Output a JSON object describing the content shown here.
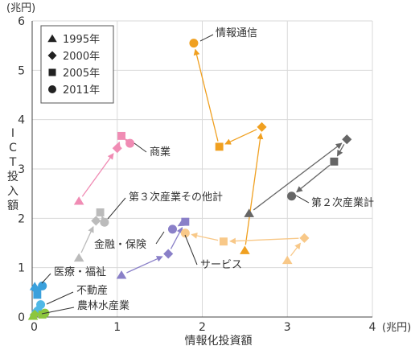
{
  "chart_data": {
    "type": "scatter",
    "xlabel": "情報化投資額",
    "x_unit": "(兆円)",
    "ylabel": "ICT投入額",
    "y_unit": "(兆円)",
    "xlim": [
      0,
      4
    ],
    "ylim": [
      0,
      6
    ],
    "x_ticks": [
      0,
      1,
      2,
      3,
      4
    ],
    "y_ticks": [
      0,
      1,
      2,
      3,
      4,
      5,
      6
    ],
    "grid": true,
    "legend_position": "top-left",
    "legend": [
      {
        "label": "1995年",
        "marker": "triangle"
      },
      {
        "label": "2000年",
        "marker": "diamond"
      },
      {
        "label": "2005年",
        "marker": "square"
      },
      {
        "label": "2011年",
        "marker": "circle"
      }
    ],
    "series": [
      {
        "name": "情報通信",
        "color": "#f0a020",
        "points": [
          {
            "x": 2.5,
            "y": 1.35
          },
          {
            "x": 2.7,
            "y": 3.85
          },
          {
            "x": 2.2,
            "y": 3.45
          },
          {
            "x": 1.9,
            "y": 5.55
          }
        ]
      },
      {
        "name": "商業",
        "color": "#f08cb4",
        "points": [
          {
            "x": 0.55,
            "y": 2.35
          },
          {
            "x": 1.0,
            "y": 3.42
          },
          {
            "x": 1.05,
            "y": 3.67
          },
          {
            "x": 1.15,
            "y": 3.52
          }
        ]
      },
      {
        "name": "第２次産業計",
        "color": "#666666",
        "points": [
          {
            "x": 2.55,
            "y": 2.1
          },
          {
            "x": 3.7,
            "y": 3.6
          },
          {
            "x": 3.55,
            "y": 3.15
          },
          {
            "x": 3.05,
            "y": 2.45
          }
        ]
      },
      {
        "name": "第３次産業その他計",
        "color": "#bbbbbb",
        "points": [
          {
            "x": 0.55,
            "y": 1.2
          },
          {
            "x": 0.75,
            "y": 1.95
          },
          {
            "x": 0.8,
            "y": 2.12
          },
          {
            "x": 0.85,
            "y": 1.92
          }
        ]
      },
      {
        "name": "金融・保険",
        "color": "#8a80c8",
        "points": [
          {
            "x": 1.05,
            "y": 0.85
          },
          {
            "x": 1.6,
            "y": 1.28
          },
          {
            "x": 1.8,
            "y": 1.93
          },
          {
            "x": 1.65,
            "y": 1.78
          }
        ]
      },
      {
        "name": "サービス",
        "color": "#f8c888",
        "points": [
          {
            "x": 3.0,
            "y": 1.15
          },
          {
            "x": 3.2,
            "y": 1.6
          },
          {
            "x": 2.25,
            "y": 1.53
          },
          {
            "x": 1.8,
            "y": 1.7
          }
        ]
      },
      {
        "name": "医療・福祉",
        "color": "#3aa0dc",
        "points": [
          {
            "x": 0.03,
            "y": 0.62
          },
          {
            "x": 0.05,
            "y": 0.55
          },
          {
            "x": 0.06,
            "y": 0.45
          },
          {
            "x": 0.12,
            "y": 0.63
          }
        ]
      },
      {
        "name": "不動産",
        "color": "#4fb8e6",
        "points": [
          {
            "x": 0.03,
            "y": 0.1
          },
          {
            "x": 0.05,
            "y": 0.12
          },
          {
            "x": 0.07,
            "y": 0.1
          },
          {
            "x": 0.1,
            "y": 0.25
          }
        ]
      },
      {
        "name": "農林水産業",
        "color": "#8cc63e",
        "points": [
          {
            "x": 0.01,
            "y": 0.02
          },
          {
            "x": 0.03,
            "y": 0.05
          },
          {
            "x": 0.12,
            "y": 0.05
          },
          {
            "x": 0.15,
            "y": 0.08
          }
        ]
      }
    ]
  }
}
